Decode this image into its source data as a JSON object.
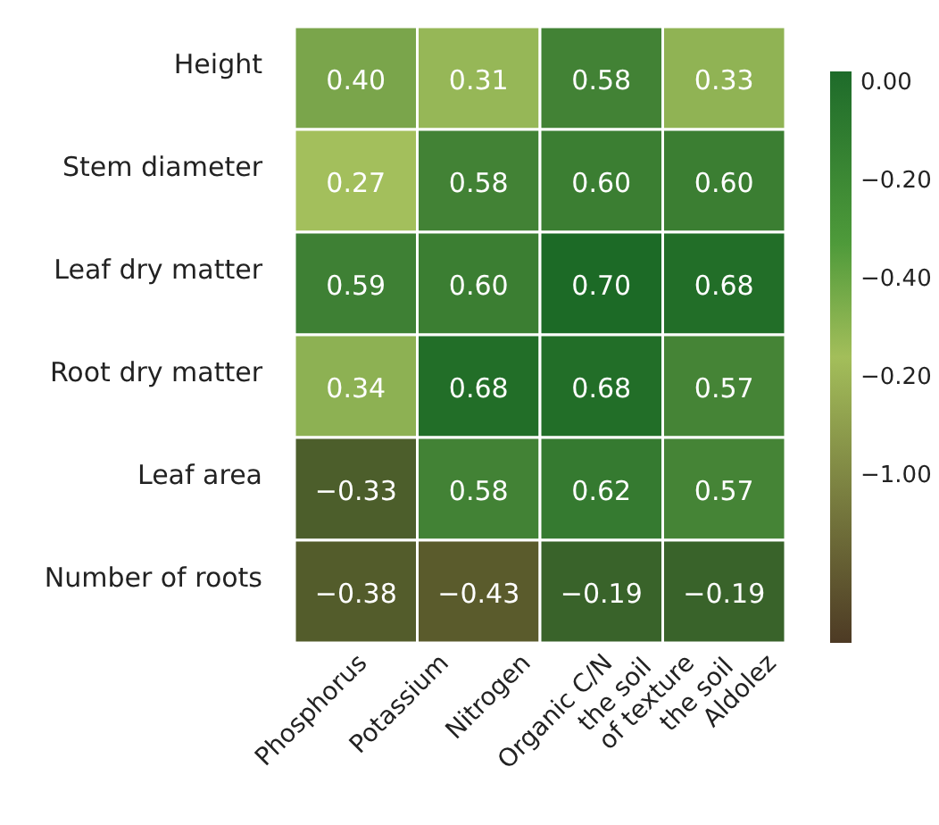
{
  "chart_data": {
    "type": "heatmap",
    "categories": [
      null,
      null,
      null,
      null
    ],
    "y_categories": [
      "Height",
      "Stem diameter",
      "Leaf dry matter",
      "Root dry matter",
      "Leaf area",
      "Number of roots"
    ],
    "cells": [
      [
        0.4,
        0.31,
        0.58,
        0.33
      ],
      [
        0.27,
        0.58,
        0.6,
        0.6
      ],
      [
        0.59,
        0.6,
        0.7,
        0.68
      ],
      [
        0.34,
        0.68,
        0.68,
        0.57
      ],
      [
        -0.33,
        0.58,
        0.62,
        0.57
      ],
      [
        -0.38,
        -0.43,
        -0.19,
        -0.19
      ]
    ],
    "cell_labels": [
      [
        "0.40",
        "0.31",
        "0.58",
        "0.33"
      ],
      [
        "0.27",
        "0.58",
        "0.60",
        "0.60"
      ],
      [
        "0.59",
        "0.60",
        "0.70",
        "0.68"
      ],
      [
        "0.34",
        "0.68",
        "0.68",
        "0.57"
      ],
      [
        "−0.33",
        "0.58",
        "0.62",
        "0.57"
      ],
      [
        "−0.38",
        "−0.43",
        "−0.19",
        "−0.19"
      ]
    ],
    "annotations": [
      "Phosphorus",
      "Potassium",
      "Nitrogen",
      "Organic C/N\nthe soil",
      "of texture\nthe soil",
      "Aldolez",
      "0.00",
      "−0.20",
      "−0.40",
      "−0.20",
      "−1.00"
    ]
  }
}
